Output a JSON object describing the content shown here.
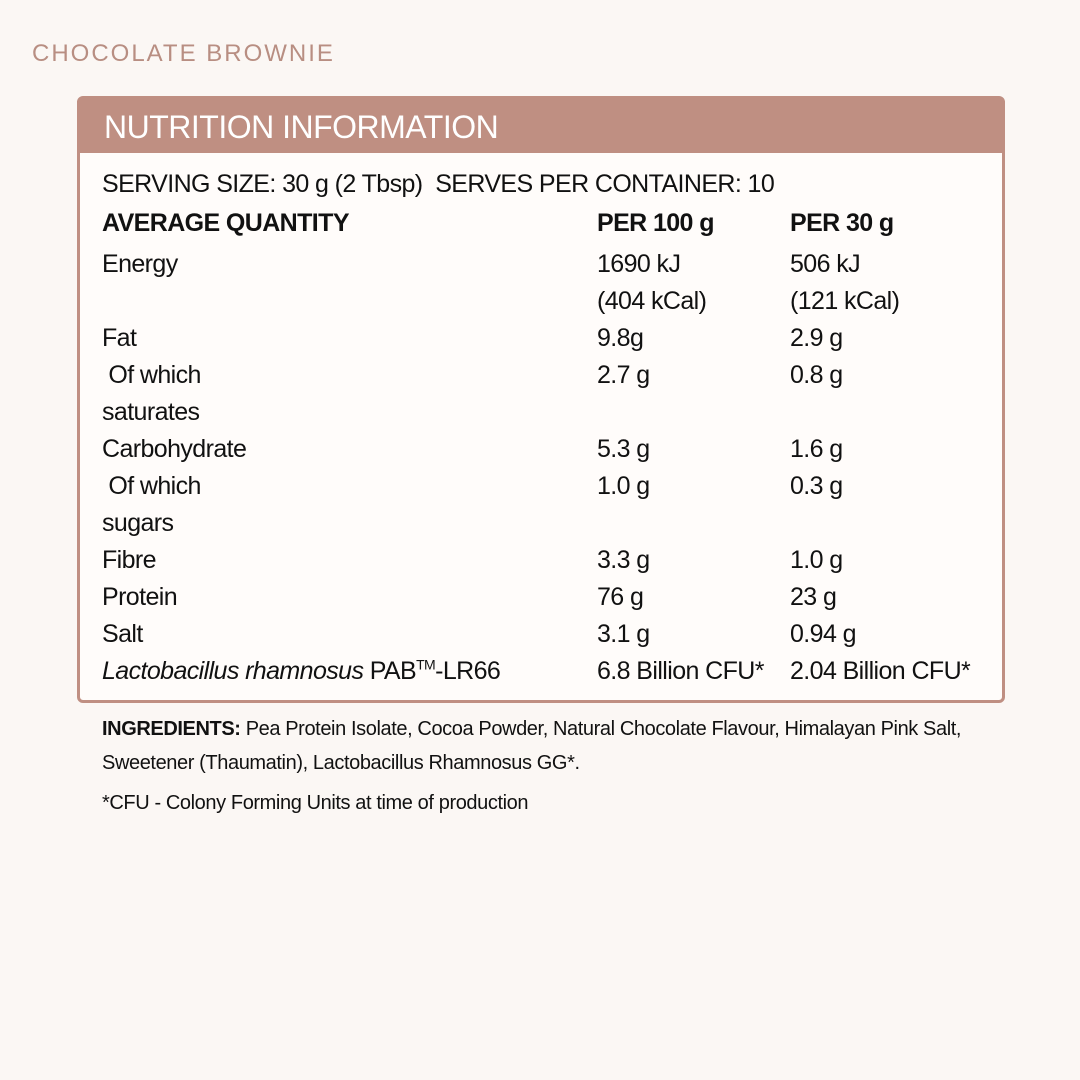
{
  "header": {
    "title": "CHOCOLATE BROWNIE"
  },
  "panel": {
    "title": "NUTRITION INFORMATION",
    "serving": "SERVING SIZE: 30 g (2 Tbsp)  SERVES PER CONTAINER: 10"
  },
  "table": {
    "columns": [
      "AVERAGE QUANTITY",
      "PER 100 g",
      "PER 30 g"
    ],
    "rows": [
      {
        "label": [
          "Energy"
        ],
        "per_100g": [
          "1690 kJ",
          "(404 kCal)"
        ],
        "per_30g": [
          "506 kJ",
          "(121 kCal)"
        ]
      },
      {
        "label": [
          "Fat"
        ],
        "per_100g": [
          "9.8g"
        ],
        "per_30g": [
          "2.9 g"
        ]
      },
      {
        "label": [
          " Of which",
          "saturates"
        ],
        "per_100g": [
          "2.7 g"
        ],
        "per_30g": [
          "0.8 g"
        ]
      },
      {
        "label": [
          "Carbohydrate"
        ],
        "per_100g": [
          "5.3 g"
        ],
        "per_30g": [
          "1.6 g"
        ]
      },
      {
        "label": [
          " Of which",
          "sugars"
        ],
        "per_100g": [
          "1.0 g"
        ],
        "per_30g": [
          "0.3 g"
        ]
      },
      {
        "label": [
          "Fibre"
        ],
        "per_100g": [
          "3.3 g"
        ],
        "per_30g": [
          "1.0 g"
        ]
      },
      {
        "label": [
          "Protein"
        ],
        "per_100g": [
          "76 g"
        ],
        "per_30g": [
          "23 g"
        ]
      },
      {
        "label": [
          "Salt"
        ],
        "per_100g": [
          "3.1 g"
        ],
        "per_30g": [
          "0.94 g"
        ]
      },
      {
        "label_parts": [
          {
            "text": "Lactobacillus rhamnosus",
            "style": "italic"
          },
          {
            "text": " PAB"
          },
          {
            "text": "TM",
            "style": "sup"
          },
          {
            "text": "-LR66"
          }
        ],
        "per_100g": [
          "6.8 Billion CFU*"
        ],
        "per_30g": [
          "2.04 Billion CFU*"
        ]
      }
    ]
  },
  "ingredients": {
    "heading": "INGREDIENTS:",
    "text": " Pea Protein Isolate, Cocoa Powder, Natural Chocolate Flavour, Himalayan Pink Salt, Sweetener (Thaumatin), Lactobacillus Rhamnosus GG*."
  },
  "footnote": "*CFU - Colony Forming Units at time of production"
}
